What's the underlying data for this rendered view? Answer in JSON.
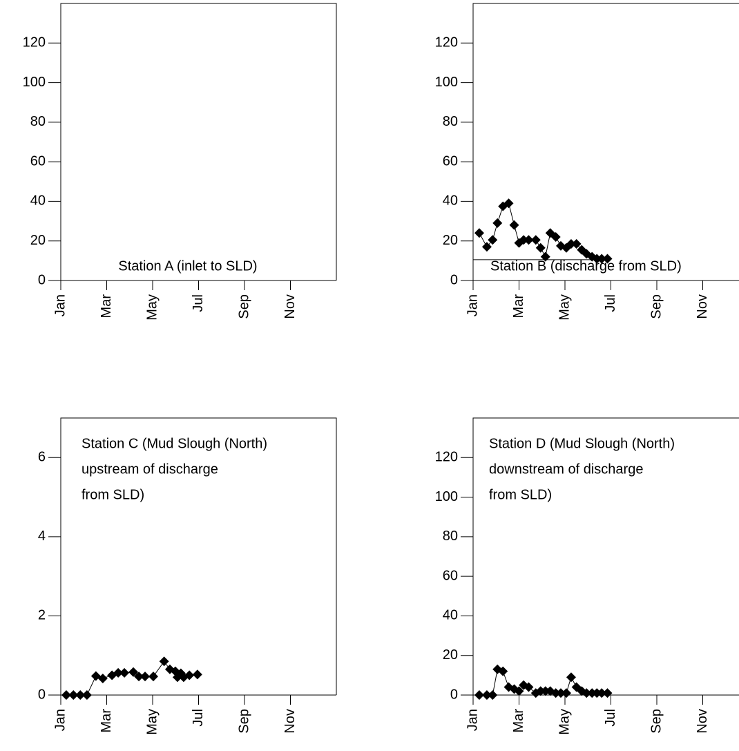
{
  "chart_data": [
    {
      "type": "line",
      "title": [
        "Station A (inlet to SLD)"
      ],
      "x": [],
      "values": [],
      "color": "#000000",
      "marker": "diamond",
      "xlim": [
        0,
        12
      ],
      "xticks": [
        {
          "value": 0,
          "label": "Jan"
        },
        {
          "value": 2,
          "label": "Mar"
        },
        {
          "value": 4,
          "label": "May"
        },
        {
          "value": 6,
          "label": "Jul"
        },
        {
          "value": 8,
          "label": "Sep"
        },
        {
          "value": 10,
          "label": "Nov"
        }
      ],
      "ylim": [
        0,
        140
      ],
      "yticks": [
        0,
        20,
        40,
        60,
        80,
        100,
        120
      ]
    },
    {
      "type": "line",
      "title": [
        "Station B (discharge from SLD)"
      ],
      "x": [
        0.27,
        0.6,
        0.85,
        1.06,
        1.3,
        1.55,
        1.79,
        2.0,
        2.2,
        2.42,
        2.73,
        2.94,
        3.15,
        3.36,
        3.6,
        3.82,
        4.06,
        4.27,
        4.5,
        4.73,
        4.94,
        5.18,
        5.39,
        5.6,
        5.85
      ],
      "values": [
        24,
        17,
        20.5,
        29,
        37.5,
        39,
        28,
        19,
        20.5,
        20.5,
        20.5,
        16.5,
        12,
        24,
        22,
        17.5,
        16.5,
        18.5,
        18.5,
        15.5,
        13.5,
        12,
        11,
        11,
        11
      ],
      "color": "#000000",
      "marker": "diamond",
      "reference_line": {
        "y": 10.5,
        "x": [
          0,
          6
        ]
      },
      "xlim": [
        0,
        12
      ],
      "xticks": [
        {
          "value": 0,
          "label": "Jan"
        },
        {
          "value": 2,
          "label": "Mar"
        },
        {
          "value": 4,
          "label": "May"
        },
        {
          "value": 6,
          "label": "Jul"
        },
        {
          "value": 8,
          "label": "Sep"
        },
        {
          "value": 10,
          "label": "Nov"
        }
      ],
      "ylim": [
        0,
        140
      ],
      "yticks": [
        0,
        20,
        40,
        60,
        80,
        100,
        120
      ]
    },
    {
      "type": "line",
      "title": [
        "Station C (Mud Slough (North)",
        "upstream of discharge",
        "from SLD)"
      ],
      "x": [
        0.24,
        0.55,
        0.85,
        1.14,
        1.53,
        1.83,
        2.23,
        2.5,
        2.77,
        3.16,
        3.4,
        3.67,
        4.03,
        4.5,
        4.75,
        4.99,
        5.08,
        5.23,
        5.35,
        5.6,
        5.95
      ],
      "values": [
        0,
        0,
        0,
        0,
        0.48,
        0.42,
        0.5,
        0.56,
        0.56,
        0.58,
        0.47,
        0.47,
        0.47,
        0.85,
        0.65,
        0.6,
        0.45,
        0.55,
        0.45,
        0.5,
        0.52
      ],
      "color": "#000000",
      "marker": "diamond",
      "xlim": [
        0,
        12
      ],
      "xticks": [
        {
          "value": 0,
          "label": "Jan"
        },
        {
          "value": 2,
          "label": "Mar"
        },
        {
          "value": 4,
          "label": "May"
        },
        {
          "value": 6,
          "label": "Jul"
        },
        {
          "value": 8,
          "label": "Sep"
        },
        {
          "value": 10,
          "label": "Nov"
        }
      ],
      "ylim": [
        0,
        7
      ],
      "yticks": [
        0,
        2,
        4,
        6
      ]
    },
    {
      "type": "line",
      "title": [
        "Station D (Mud Slough (North)",
        "downstream of discharge",
        "from SLD)"
      ],
      "x": [
        0.27,
        0.6,
        0.85,
        1.06,
        1.3,
        1.55,
        1.79,
        2.0,
        2.2,
        2.42,
        2.73,
        2.94,
        3.15,
        3.36,
        3.6,
        3.82,
        4.06,
        4.27,
        4.5,
        4.73,
        4.94,
        5.18,
        5.39,
        5.6,
        5.85
      ],
      "values": [
        0,
        0,
        0,
        13,
        12,
        4,
        3,
        2,
        5,
        4,
        1,
        2,
        2,
        2,
        1,
        1,
        1,
        9,
        4,
        2,
        1,
        1,
        1,
        1,
        1
      ],
      "color": "#000000",
      "marker": "diamond",
      "xlim": [
        0,
        12
      ],
      "xticks": [
        {
          "value": 0,
          "label": "Jan"
        },
        {
          "value": 2,
          "label": "Mar"
        },
        {
          "value": 4,
          "label": "May"
        },
        {
          "value": 6,
          "label": "Jul"
        },
        {
          "value": 8,
          "label": "Sep"
        },
        {
          "value": 10,
          "label": "Nov"
        }
      ],
      "ylim": [
        0,
        140
      ],
      "yticks": [
        0,
        20,
        40,
        60,
        80,
        100,
        120
      ]
    }
  ]
}
